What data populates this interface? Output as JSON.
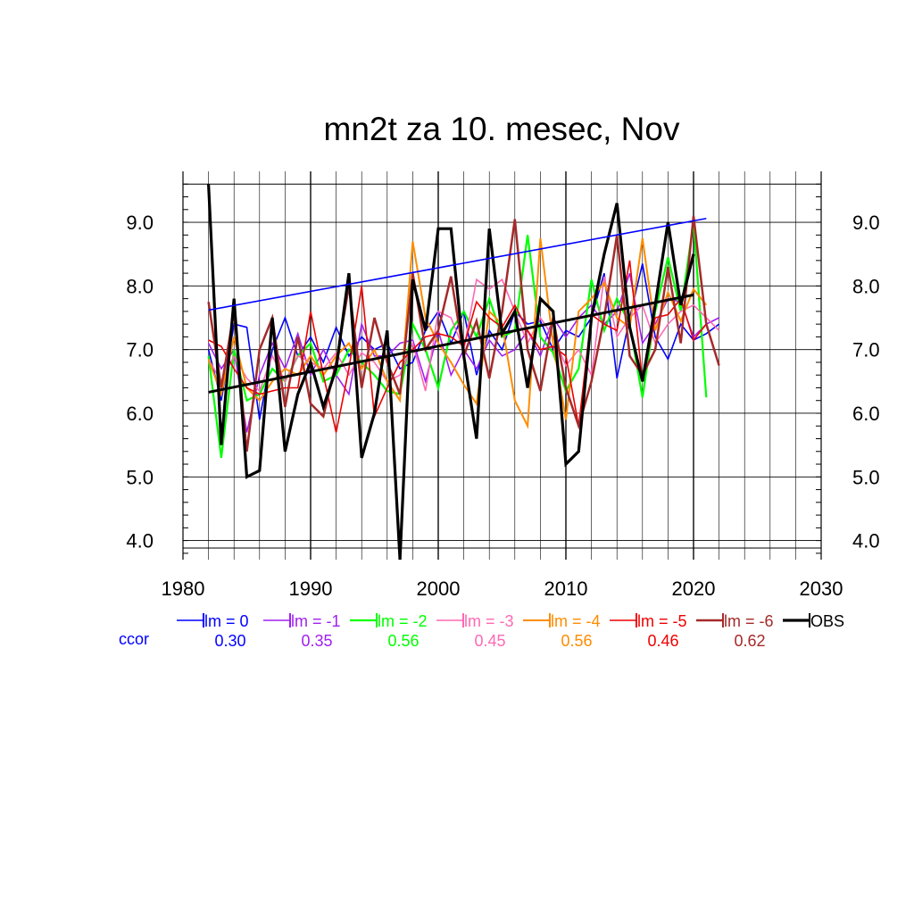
{
  "chart_data": {
    "type": "line",
    "title": "mn2t za 10. mesec, Nov",
    "xlabel": "",
    "ylabel": "",
    "xlim": [
      1980,
      2030
    ],
    "ylim": [
      3.7,
      9.8
    ],
    "x_ticks": [
      1980,
      1990,
      2000,
      2010,
      2020,
      2030
    ],
    "y_ticks": [
      4.0,
      5.0,
      6.0,
      7.0,
      8.0,
      9.0
    ],
    "grid": true,
    "legend_position": "bottom",
    "ccor_label": "ccor",
    "series": [
      {
        "name": "lm = 0",
        "color": "#0000ff",
        "width": 1.6,
        "ccor": "0.30",
        "x_start": 1982,
        "values": [
          7.0,
          6.2,
          7.4,
          7.35,
          5.9,
          7.0,
          7.5,
          6.9,
          7.2,
          6.8,
          7.35,
          6.9,
          7.2,
          7.0,
          7.1,
          6.7,
          6.8,
          7.3,
          7.6,
          7.1,
          7.6,
          6.6,
          7.3,
          7.0,
          7.6,
          7.4,
          7.45,
          7.0,
          7.3,
          7.2,
          7.5,
          8.2,
          6.55,
          7.5,
          8.35,
          7.2,
          6.85,
          7.4,
          7.15,
          7.25,
          7.4
        ]
      },
      {
        "name": "lm = -1",
        "color": "#a020f0",
        "width": 1.6,
        "ccor": "0.35",
        "x_start": 1982,
        "values": [
          7.1,
          6.7,
          7.0,
          5.7,
          6.6,
          7.1,
          6.7,
          7.25,
          6.6,
          7.0,
          6.6,
          6.3,
          7.4,
          6.9,
          6.9,
          7.1,
          7.15,
          6.5,
          7.3,
          6.6,
          7.0,
          6.7,
          7.15,
          6.9,
          7.0,
          7.3,
          6.9,
          7.5,
          7.2,
          7.5,
          7.7,
          7.4,
          7.6,
          8.2,
          7.1,
          7.4,
          7.8,
          7.75,
          7.2,
          7.4,
          7.5
        ]
      },
      {
        "name": "lm = -2",
        "color": "#00ff00",
        "width": 2.2,
        "ccor": "0.56",
        "x_start": 1982,
        "values": [
          6.9,
          5.3,
          7.0,
          6.2,
          6.3,
          6.7,
          6.5,
          6.9,
          7.1,
          6.5,
          6.6,
          7.0,
          6.8,
          6.6,
          6.35,
          6.3,
          7.4,
          7.0,
          6.4,
          7.3,
          7.6,
          7.2,
          7.8,
          7.2,
          7.3,
          8.8,
          7.2,
          6.95,
          6.35,
          6.7,
          8.1,
          7.3,
          7.8,
          7.4,
          6.25,
          7.6,
          8.45,
          7.6,
          9.0,
          6.25
        ]
      },
      {
        "name": "lm = -3",
        "color": "#ff69b4",
        "width": 1.6,
        "ccor": "0.45",
        "x_start": 1982,
        "values": [
          6.85,
          6.5,
          6.9,
          6.55,
          6.35,
          6.9,
          6.5,
          6.9,
          6.8,
          6.7,
          6.95,
          6.6,
          6.95,
          6.8,
          6.5,
          6.6,
          7.1,
          6.35,
          7.6,
          7.5,
          7.0,
          8.1,
          7.95,
          8.1,
          7.6,
          7.1,
          7.5,
          7.2,
          6.75,
          7.0,
          6.6,
          8.15,
          7.2,
          7.5,
          7.7,
          7.1,
          7.4,
          7.6,
          7.7,
          7.5,
          7.3
        ]
      },
      {
        "name": "lm = -4",
        "color": "#ff8c00",
        "width": 2.0,
        "ccor": "0.56",
        "x_start": 1982,
        "values": [
          6.85,
          6.3,
          7.2,
          6.4,
          6.2,
          6.5,
          6.7,
          6.6,
          6.9,
          6.6,
          6.9,
          7.1,
          6.7,
          7.0,
          6.5,
          6.2,
          8.7,
          7.5,
          7.1,
          6.8,
          6.45,
          6.15,
          7.6,
          7.4,
          6.2,
          5.8,
          8.75,
          7.1,
          5.9,
          7.6,
          7.8,
          8.05,
          7.5,
          7.35,
          8.75,
          7.3,
          7.9,
          7.45,
          7.95,
          7.7
        ]
      },
      {
        "name": "lm = -5",
        "color": "#ee0000",
        "width": 1.6,
        "ccor": "0.46",
        "x_start": 1982,
        "values": [
          7.15,
          7.05,
          6.7,
          6.4,
          6.3,
          6.35,
          6.4,
          6.4,
          7.6,
          6.6,
          5.7,
          6.7,
          8.0,
          5.95,
          6.4,
          6.8,
          7.0,
          7.2,
          7.25,
          7.2,
          7.05,
          7.75,
          7.5,
          7.35,
          7.7,
          7.3,
          7.0,
          7.05,
          6.9,
          5.8,
          7.55,
          7.4,
          7.3,
          8.4,
          6.5,
          7.5,
          7.55,
          7.8,
          7.15,
          7.4
        ]
      },
      {
        "name": "lm = -6",
        "color": "#a52a2a",
        "width": 2.5,
        "ccor": "0.62",
        "x_start": 1982,
        "values": [
          7.75,
          6.4,
          7.6,
          5.4,
          7.0,
          7.5,
          6.1,
          7.2,
          6.15,
          5.95,
          6.8,
          8.0,
          6.4,
          7.5,
          6.8,
          6.3,
          8.2,
          7.0,
          7.3,
          8.15,
          6.9,
          7.45,
          6.55,
          7.6,
          9.05,
          7.0,
          6.35,
          7.5,
          6.4,
          5.8,
          6.5,
          7.5,
          8.8,
          6.9,
          6.6,
          7.0,
          8.3,
          7.1,
          9.1,
          7.4,
          6.75
        ]
      },
      {
        "name": "OBS",
        "color": "#000000",
        "width": 3.2,
        "ccor": "",
        "x_start": 1982,
        "values": [
          9.6,
          5.5,
          7.8,
          5.0,
          5.1,
          7.5,
          5.4,
          6.3,
          6.8,
          6.1,
          6.7,
          8.2,
          5.3,
          6.0,
          7.3,
          3.7,
          8.1,
          7.3,
          8.9,
          8.9,
          6.9,
          5.6,
          8.9,
          7.25,
          7.6,
          6.4,
          7.8,
          7.6,
          5.2,
          5.4,
          7.5,
          8.5,
          9.3,
          7.35,
          6.5,
          7.7,
          9.0,
          7.7,
          8.5
        ]
      }
    ],
    "trend_lines": [
      {
        "name": "lm = 0 trend",
        "color": "#0000ff",
        "width": 1.6,
        "x": [
          1982,
          2021
        ],
        "y": [
          7.62,
          9.06
        ]
      },
      {
        "name": "OBS trend",
        "color": "#000000",
        "width": 3.0,
        "x": [
          1982,
          2020
        ],
        "y": [
          6.33,
          7.86
        ]
      }
    ]
  }
}
